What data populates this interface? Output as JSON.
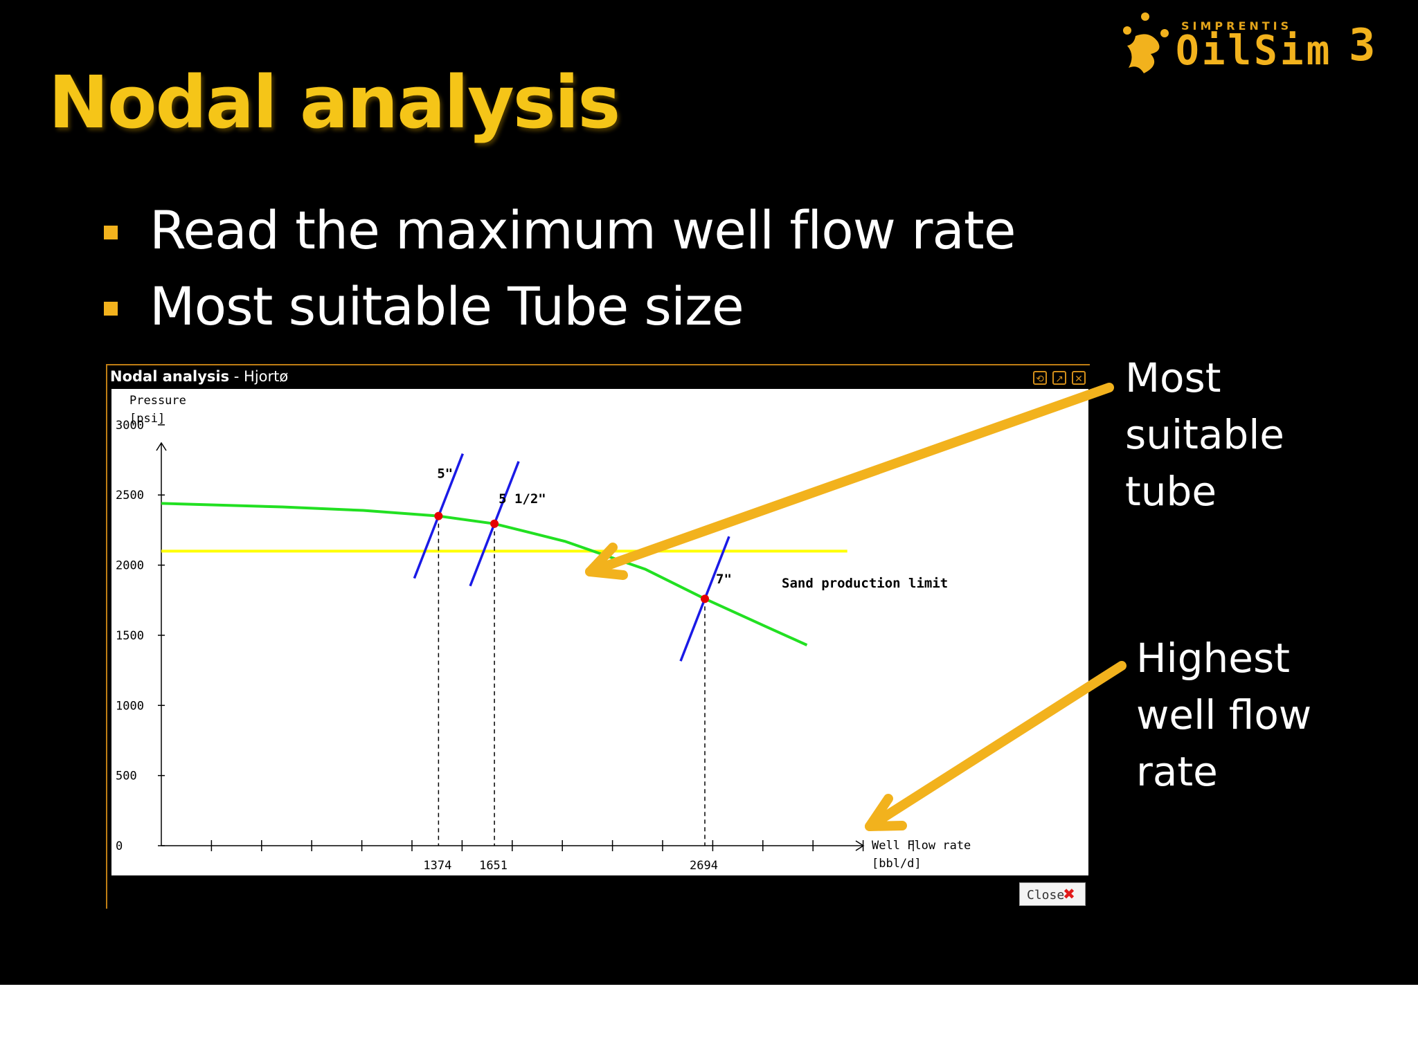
{
  "slide": {
    "title": "Nodal analysis",
    "bullets": [
      "Read the maximum well flow rate",
      "Most suitable Tube size"
    ],
    "callouts": [
      {
        "lines": [
          "Most",
          "suitable",
          "tube"
        ]
      },
      {
        "lines": [
          "Highest",
          "well flow",
          "rate"
        ]
      }
    ],
    "accent_color": "#f2b21d"
  },
  "logo": {
    "small": "SIMPRENTIS",
    "main": "OilSim",
    "version": "3"
  },
  "window": {
    "title_bold": "Nodal analysis",
    "title_rest": " - Hjortø",
    "close_label": "Close",
    "buttons": [
      "restore-icon",
      "maximize-icon",
      "close-icon"
    ]
  },
  "chart_data": {
    "type": "line",
    "ylabel": [
      "Pressure",
      "[psi]"
    ],
    "xlabel": [
      "Well Flow rate",
      "[bbl/d]"
    ],
    "yticks": [
      0,
      500,
      1000,
      1500,
      2000,
      2500,
      3000
    ],
    "ylim": [
      0,
      3400
    ],
    "xlim": [
      0,
      3200
    ],
    "grid": false,
    "series": [
      {
        "name": "inflow",
        "color": "#22e022",
        "x": [
          0,
          600,
          1000,
          1374,
          1651,
          2000,
          2400,
          2694,
          3000,
          3200
        ],
        "y": [
          2440,
          2415,
          2390,
          2350,
          2295,
          2170,
          1970,
          1760,
          1560,
          1430
        ]
      },
      {
        "name": "Sand production limit",
        "color": "#ffff00",
        "x": [
          0,
          3200
        ],
        "y": [
          2100,
          2100
        ]
      }
    ],
    "tube_curves": [
      {
        "label": "5\"",
        "rate": 1374,
        "pressure": 2350
      },
      {
        "label": "5 1/2\"",
        "rate": 1651,
        "pressure": 2295
      },
      {
        "label": "7\"",
        "rate": 2694,
        "pressure": 1760
      }
    ],
    "x_marked": [
      "1374",
      "1651",
      "2694"
    ],
    "sand_limit_label": "Sand production limit",
    "sand_limit": 2100
  }
}
